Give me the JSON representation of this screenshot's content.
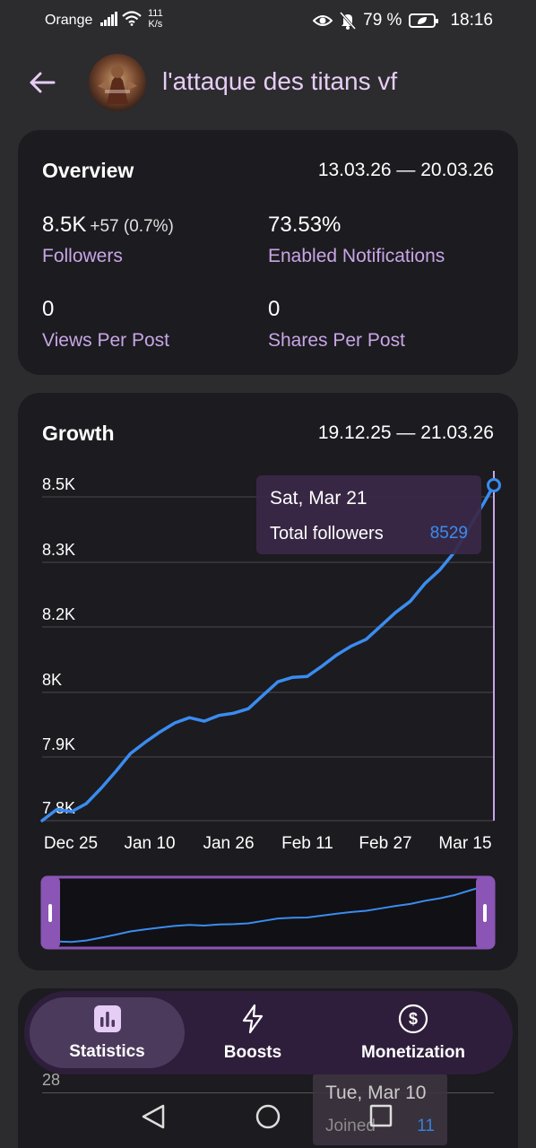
{
  "status_bar": {
    "carrier": "Orange",
    "speed_value": "111",
    "speed_unit": "K/s",
    "battery": "79 %",
    "time": "18:16"
  },
  "header": {
    "title": "l'attaque des titans vf",
    "back_icon": "arrow-left-icon"
  },
  "overview": {
    "title": "Overview",
    "date_range": "13.03.26 — 20.03.26",
    "followers_value": "8.5K",
    "followers_delta": "+57 (0.7%)",
    "followers_label": "Followers",
    "notifications_value": "73.53%",
    "notifications_label": "Enabled Notifications",
    "views_value": "0",
    "views_label": "Views Per Post",
    "shares_value": "0",
    "shares_label": "Shares Per Post"
  },
  "growth": {
    "title": "Growth",
    "date_range": "19.12.25 — 21.03.26",
    "tooltip": {
      "date": "Sat, Mar 21",
      "label": "Total followers",
      "value": "8529"
    }
  },
  "chart_data": {
    "type": "line",
    "title": "Growth",
    "y_tick_labels": [
      "8.5K",
      "8.3K",
      "8.2K",
      "8K",
      "7.9K",
      "7.8K"
    ],
    "x_tick_labels": [
      "Dec 25",
      "Jan 10",
      "Jan 26",
      "Feb 11",
      "Feb 27",
      "Mar 15"
    ],
    "ylim": [
      7780,
      8535
    ],
    "xlim": [
      "2025-12-19",
      "2026-03-21"
    ],
    "grid": true,
    "series": [
      {
        "color": "#3a8cf0",
        "x": [
          "2025-12-19",
          "2025-12-22",
          "2025-12-25",
          "2025-12-28",
          "2025-12-31",
          "2026-01-03",
          "2026-01-06",
          "2026-01-09",
          "2026-01-12",
          "2026-01-15",
          "2026-01-18",
          "2026-01-21",
          "2026-01-24",
          "2026-01-27",
          "2026-01-30",
          "2026-02-02",
          "2026-02-05",
          "2026-02-08",
          "2026-02-11",
          "2026-02-14",
          "2026-02-17",
          "2026-02-20",
          "2026-02-23",
          "2026-02-26",
          "2026-03-01",
          "2026-03-04",
          "2026-03-07",
          "2026-03-10",
          "2026-03-13",
          "2026-03-16",
          "2026-03-19",
          "2026-03-21"
        ],
        "values": [
          7780,
          7805,
          7800,
          7818,
          7852,
          7890,
          7930,
          7955,
          7978,
          7998,
          8010,
          8002,
          8015,
          8020,
          8030,
          8060,
          8090,
          8100,
          8102,
          8125,
          8150,
          8170,
          8185,
          8215,
          8245,
          8270,
          8310,
          8340,
          8380,
          8435,
          8490,
          8529
        ]
      }
    ]
  },
  "navigator": {
    "left_handle": "range-handle-left",
    "right_handle": "range-handle-right"
  },
  "next_card": {
    "peek_number": "28",
    "tooltip_date": "Tue, Mar 10",
    "tooltip_label": "Joined",
    "tooltip_value": "11"
  },
  "bottom_nav": {
    "items": [
      {
        "label": "Statistics",
        "icon": "bar-chart-icon",
        "active": true
      },
      {
        "label": "Boosts",
        "icon": "lightning-icon",
        "active": false
      },
      {
        "label": "Monetization",
        "icon": "dollar-icon",
        "active": false
      }
    ]
  },
  "colors": {
    "accent_purple": "#c7a6e6",
    "line_blue": "#3a8cf0",
    "card_bg": "#1c1b1f",
    "page_bg": "#2c2b2e",
    "nav_bg": "#2e1e3b"
  }
}
